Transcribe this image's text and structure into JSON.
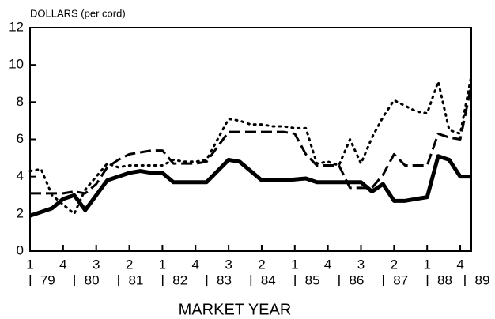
{
  "chart_data": {
    "type": "line",
    "title": "DOLLARS (per cord)",
    "x_label": "MARKET YEAR",
    "x": [
      79,
      79.25,
      79.5,
      79.75,
      80,
      80.25,
      80.5,
      80.75,
      81,
      81.25,
      81.5,
      81.75,
      82,
      82.25,
      82.5,
      82.75,
      83,
      83.25,
      83.5,
      83.75,
      84,
      84.25,
      84.5,
      84.75,
      85,
      85.25,
      85.5,
      85.75,
      86,
      86.25,
      86.5,
      86.75,
      87,
      87.25,
      87.5,
      87.75,
      88,
      88.25,
      88.5,
      88.75,
      89
    ],
    "series": [
      {
        "color": "#000000",
        "style": "solid",
        "values": [
          1.9,
          2.1,
          2.3,
          2.8,
          3.0,
          2.2,
          3.0,
          3.8,
          4.0,
          4.2,
          4.3,
          4.2,
          4.2,
          3.7,
          3.7,
          3.7,
          3.7,
          4.3,
          4.9,
          4.8,
          4.3,
          3.8,
          3.8,
          3.8,
          3.85,
          3.9,
          3.7,
          3.7,
          3.7,
          3.7,
          3.7,
          3.2,
          3.6,
          2.7,
          2.7,
          2.8,
          2.9,
          5.1,
          4.9,
          4.0,
          4.0
        ]
      },
      {
        "color": "#000000",
        "style": "dashed",
        "values": [
          3.1,
          3.1,
          3.1,
          3.1,
          3.2,
          3.1,
          3.6,
          4.5,
          4.9,
          5.2,
          5.3,
          5.4,
          5.4,
          4.7,
          4.7,
          4.7,
          4.8,
          5.6,
          6.4,
          6.4,
          6.4,
          6.4,
          6.4,
          6.4,
          6.3,
          5.2,
          4.6,
          4.6,
          4.6,
          3.4,
          3.4,
          3.4,
          4.1,
          5.2,
          4.6,
          4.6,
          4.6,
          6.3,
          6.1,
          6.0,
          8.9
        ]
      },
      {
        "color": "#000000",
        "style": "dotted",
        "values": [
          4.3,
          4.4,
          3.0,
          2.5,
          2.0,
          3.3,
          4.0,
          4.7,
          4.5,
          4.6,
          4.6,
          4.6,
          4.6,
          4.9,
          4.8,
          4.8,
          4.9,
          6.0,
          7.1,
          7.0,
          6.8,
          6.8,
          6.7,
          6.7,
          6.6,
          6.6,
          4.7,
          4.8,
          4.6,
          6.0,
          4.7,
          6.1,
          7.2,
          8.1,
          7.8,
          7.5,
          7.4,
          9.1,
          6.5,
          6.3,
          9.4
        ]
      }
    ],
    "xlim": [
      79,
      89
    ],
    "xticks": [
      {
        "value": 79,
        "label": "1"
      },
      {
        "value": 79.75,
        "label": "4"
      },
      {
        "value": 80.5,
        "label": "3"
      },
      {
        "value": 81.25,
        "label": "2"
      },
      {
        "value": 82,
        "label": "1"
      },
      {
        "value": 82.75,
        "label": "4"
      },
      {
        "value": 83.5,
        "label": "3"
      },
      {
        "value": 84.25,
        "label": "2"
      },
      {
        "value": 85,
        "label": "1"
      },
      {
        "value": 85.75,
        "label": "4"
      },
      {
        "value": 86.5,
        "label": "3"
      },
      {
        "value": 87.25,
        "label": "2"
      },
      {
        "value": 88,
        "label": "1"
      },
      {
        "value": 88.75,
        "label": "4"
      }
    ],
    "year_labels": [
      {
        "value": 79.4,
        "label": "79"
      },
      {
        "value": 80.4,
        "label": "80"
      },
      {
        "value": 81.4,
        "label": "81"
      },
      {
        "value": 82.4,
        "label": "82"
      },
      {
        "value": 83.4,
        "label": "83"
      },
      {
        "value": 84.4,
        "label": "84"
      },
      {
        "value": 85.4,
        "label": "85"
      },
      {
        "value": 86.4,
        "label": "86"
      },
      {
        "value": 87.4,
        "label": "87"
      },
      {
        "value": 88.4,
        "label": "88"
      },
      {
        "value": 89.25,
        "label": "89"
      }
    ],
    "ylim": [
      0,
      12
    ],
    "yticks": [
      0,
      2,
      4,
      6,
      8,
      10,
      12
    ],
    "grid": false
  }
}
